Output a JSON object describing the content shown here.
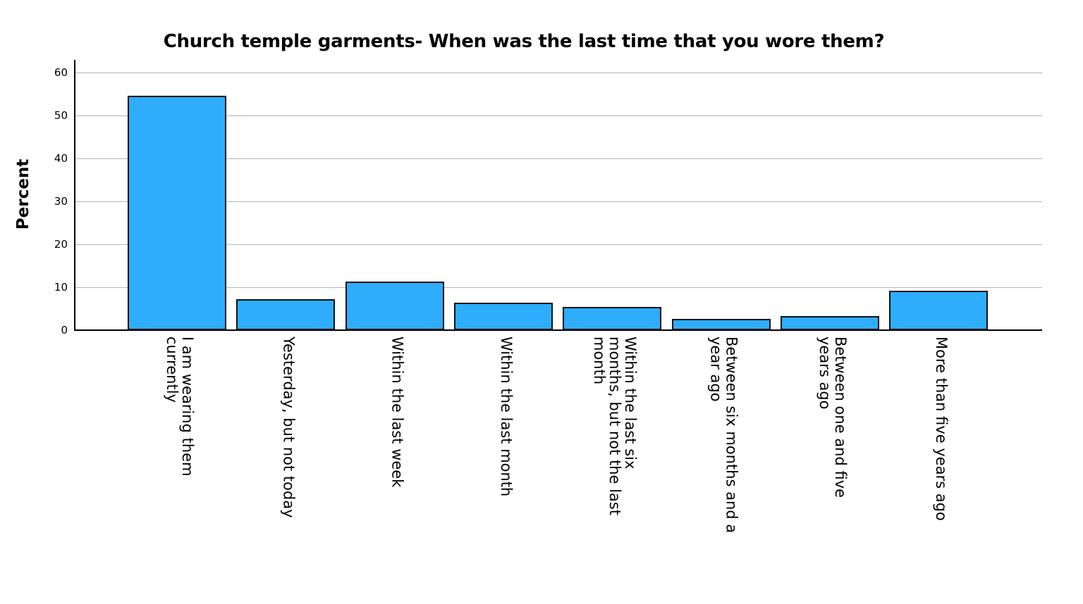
{
  "chart_data": {
    "type": "bar",
    "title": "Church temple garments- When was the last time that you wore them?",
    "xlabel": "",
    "ylabel": "Percent",
    "ylim": [
      0,
      60
    ],
    "yticks": [
      0,
      10,
      20,
      30,
      40,
      50,
      60
    ],
    "grid": true,
    "legend": null,
    "bar_color": "#2eadfd",
    "categories": [
      "I am wearing them currently",
      "Yesterday, but not today",
      "Within the last week",
      "Within the last month",
      "Within the last six months, but not the last month",
      "Between six months and a year ago",
      "Between one and five years ago",
      "More than five years ago"
    ],
    "values": [
      54.4,
      7.1,
      11.1,
      6.2,
      5.3,
      2.5,
      3.1,
      9.1
    ]
  },
  "labels_display": [
    "I am wearing them\ncurrently",
    "Yesterday, but not today",
    "Within the last week",
    "Within the last month",
    "Within the last six\nmonths, but not the last\nmonth",
    "Between six months and a\nyear ago",
    "Between one and five\nyears ago",
    "More than five years ago"
  ]
}
